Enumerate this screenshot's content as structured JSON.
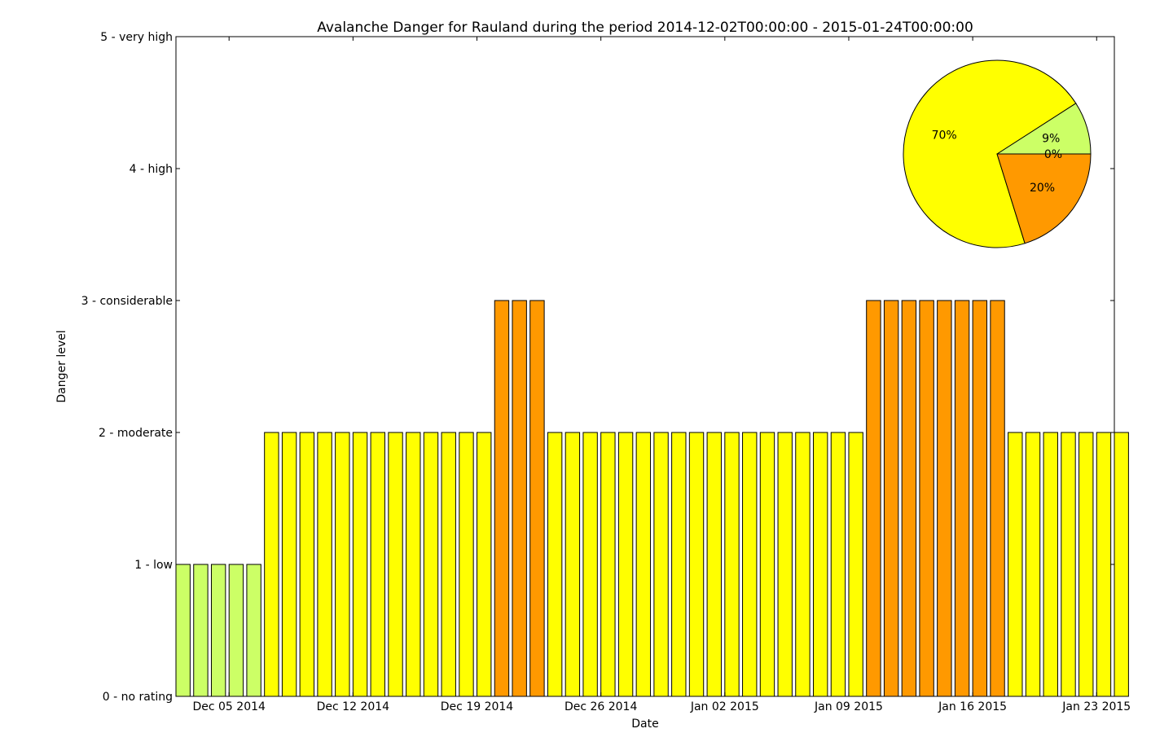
{
  "chart_data": {
    "type": "bar",
    "title": "Avalanche Danger for Rauland during the period 2014-12-02T00:00:00 - 2015-01-24T00:00:00",
    "xlabel": "Date",
    "ylabel": "Danger level",
    "ylim": [
      0,
      5
    ],
    "yticks": [
      {
        "value": 0,
        "label": "0 - no rating"
      },
      {
        "value": 1,
        "label": "1 - low"
      },
      {
        "value": 2,
        "label": "2 - moderate"
      },
      {
        "value": 3,
        "label": "3 - considerable"
      },
      {
        "value": 4,
        "label": "4 - high"
      },
      {
        "value": 5,
        "label": "5 - very high"
      }
    ],
    "xlim": [
      "2014-12-02",
      "2015-01-24"
    ],
    "xticks": [
      {
        "date": "2014-12-05",
        "label": "Dec 05 2014"
      },
      {
        "date": "2014-12-12",
        "label": "Dec 12 2014"
      },
      {
        "date": "2014-12-19",
        "label": "Dec 19 2014"
      },
      {
        "date": "2014-12-26",
        "label": "Dec 26 2014"
      },
      {
        "date": "2015-01-02",
        "label": "Jan 02 2015"
      },
      {
        "date": "2015-01-09",
        "label": "Jan 09 2015"
      },
      {
        "date": "2015-01-16",
        "label": "Jan 16 2015"
      },
      {
        "date": "2015-01-23",
        "label": "Jan 23 2015"
      }
    ],
    "bars": {
      "start_date": "2014-12-02",
      "values": [
        1,
        1,
        1,
        1,
        1,
        2,
        2,
        2,
        2,
        2,
        2,
        2,
        2,
        2,
        2,
        2,
        2,
        2,
        3,
        3,
        3,
        2,
        2,
        2,
        2,
        2,
        2,
        2,
        2,
        2,
        2,
        2,
        2,
        2,
        2,
        2,
        2,
        2,
        2,
        3,
        3,
        3,
        3,
        3,
        3,
        3,
        3,
        2,
        2,
        2,
        2,
        2,
        2,
        2
      ]
    },
    "level_colors": {
      "0": "#ffffff",
      "1": "#ccff66",
      "2": "#ffff00",
      "3": "#ff9900",
      "4": "#ff0000",
      "5": "#000000"
    },
    "pie": {
      "slices": [
        {
          "level": 1,
          "percent": 9,
          "label": "9%",
          "color": "#ccff66"
        },
        {
          "level": 2,
          "percent": 70,
          "label": "70%",
          "color": "#ffff00"
        },
        {
          "level": 3,
          "percent": 20,
          "label": "20%",
          "color": "#ff9900"
        },
        {
          "level": 4,
          "percent": 0,
          "label": "0%",
          "color": "#ff0000"
        }
      ]
    },
    "grid": false
  }
}
